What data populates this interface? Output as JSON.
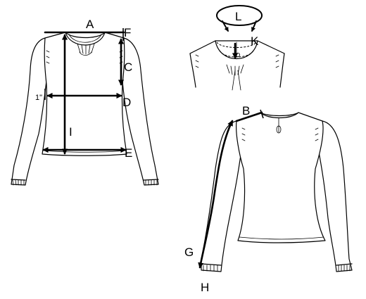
{
  "labels": {
    "A": "A",
    "B": "B",
    "C": "C",
    "D": "D",
    "E": "E",
    "F": "F",
    "G": "G",
    "H": "H",
    "I": "I",
    "K": "K",
    "L": "L",
    "one_inch": "1\""
  }
}
